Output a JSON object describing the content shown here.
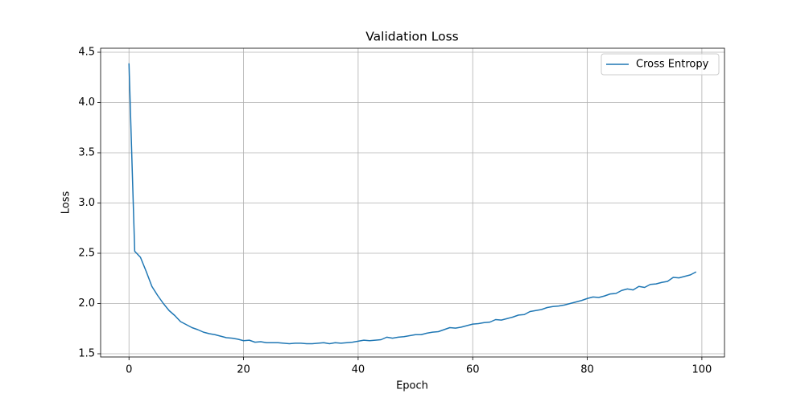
{
  "chart_data": {
    "type": "line",
    "title": "Validation Loss",
    "xlabel": "Epoch",
    "ylabel": "Loss",
    "x": [
      0,
      1,
      2,
      3,
      4,
      5,
      6,
      7,
      8,
      9,
      10,
      11,
      12,
      13,
      14,
      15,
      16,
      17,
      18,
      19,
      20,
      21,
      22,
      23,
      24,
      25,
      26,
      27,
      28,
      29,
      30,
      31,
      32,
      33,
      34,
      35,
      36,
      37,
      38,
      39,
      40,
      41,
      42,
      43,
      44,
      45,
      46,
      47,
      48,
      49,
      50,
      51,
      52,
      53,
      54,
      55,
      56,
      57,
      58,
      59,
      60,
      61,
      62,
      63,
      64,
      65,
      66,
      67,
      68,
      69,
      70,
      71,
      72,
      73,
      74,
      75,
      76,
      77,
      78,
      79,
      80,
      81,
      82,
      83,
      84,
      85,
      86,
      87,
      88,
      89,
      90,
      91,
      92,
      93,
      94,
      95,
      96,
      97,
      98,
      99
    ],
    "series": [
      {
        "name": "Cross Entropy",
        "color": "#1f77b4",
        "values": [
          4.39,
          2.52,
          2.46,
          2.32,
          2.17,
          2.08,
          2.0,
          1.93,
          1.88,
          1.82,
          1.79,
          1.76,
          1.74,
          1.715,
          1.7,
          1.69,
          1.675,
          1.66,
          1.655,
          1.645,
          1.63,
          1.635,
          1.615,
          1.62,
          1.61,
          1.61,
          1.61,
          1.605,
          1.6,
          1.605,
          1.605,
          1.6,
          1.6,
          1.605,
          1.61,
          1.6,
          1.61,
          1.605,
          1.61,
          1.615,
          1.625,
          1.635,
          1.63,
          1.635,
          1.64,
          1.665,
          1.655,
          1.665,
          1.67,
          1.68,
          1.69,
          1.69,
          1.705,
          1.715,
          1.72,
          1.74,
          1.76,
          1.755,
          1.765,
          1.78,
          1.795,
          1.8,
          1.81,
          1.815,
          1.84,
          1.835,
          1.85,
          1.865,
          1.885,
          1.89,
          1.92,
          1.93,
          1.94,
          1.96,
          1.97,
          1.975,
          1.985,
          2.0,
          2.015,
          2.03,
          2.05,
          2.065,
          2.06,
          2.075,
          2.095,
          2.1,
          2.13,
          2.145,
          2.135,
          2.17,
          2.16,
          2.19,
          2.195,
          2.21,
          2.22,
          2.26,
          2.255,
          2.27,
          2.285,
          2.315
        ]
      }
    ],
    "xlim": [
      -4.95,
      103.95
    ],
    "ylim": [
      1.468,
      4.54
    ],
    "xticks": [
      0,
      20,
      40,
      60,
      80,
      100
    ],
    "yticks": [
      1.5,
      {
        "value": 2,
        "label": "2.0"
      },
      2.5,
      {
        "value": 3,
        "label": "3.0"
      },
      3.5,
      {
        "value": 4,
        "label": "4.0"
      },
      4.5
    ],
    "grid": true,
    "legend": "upper right"
  }
}
